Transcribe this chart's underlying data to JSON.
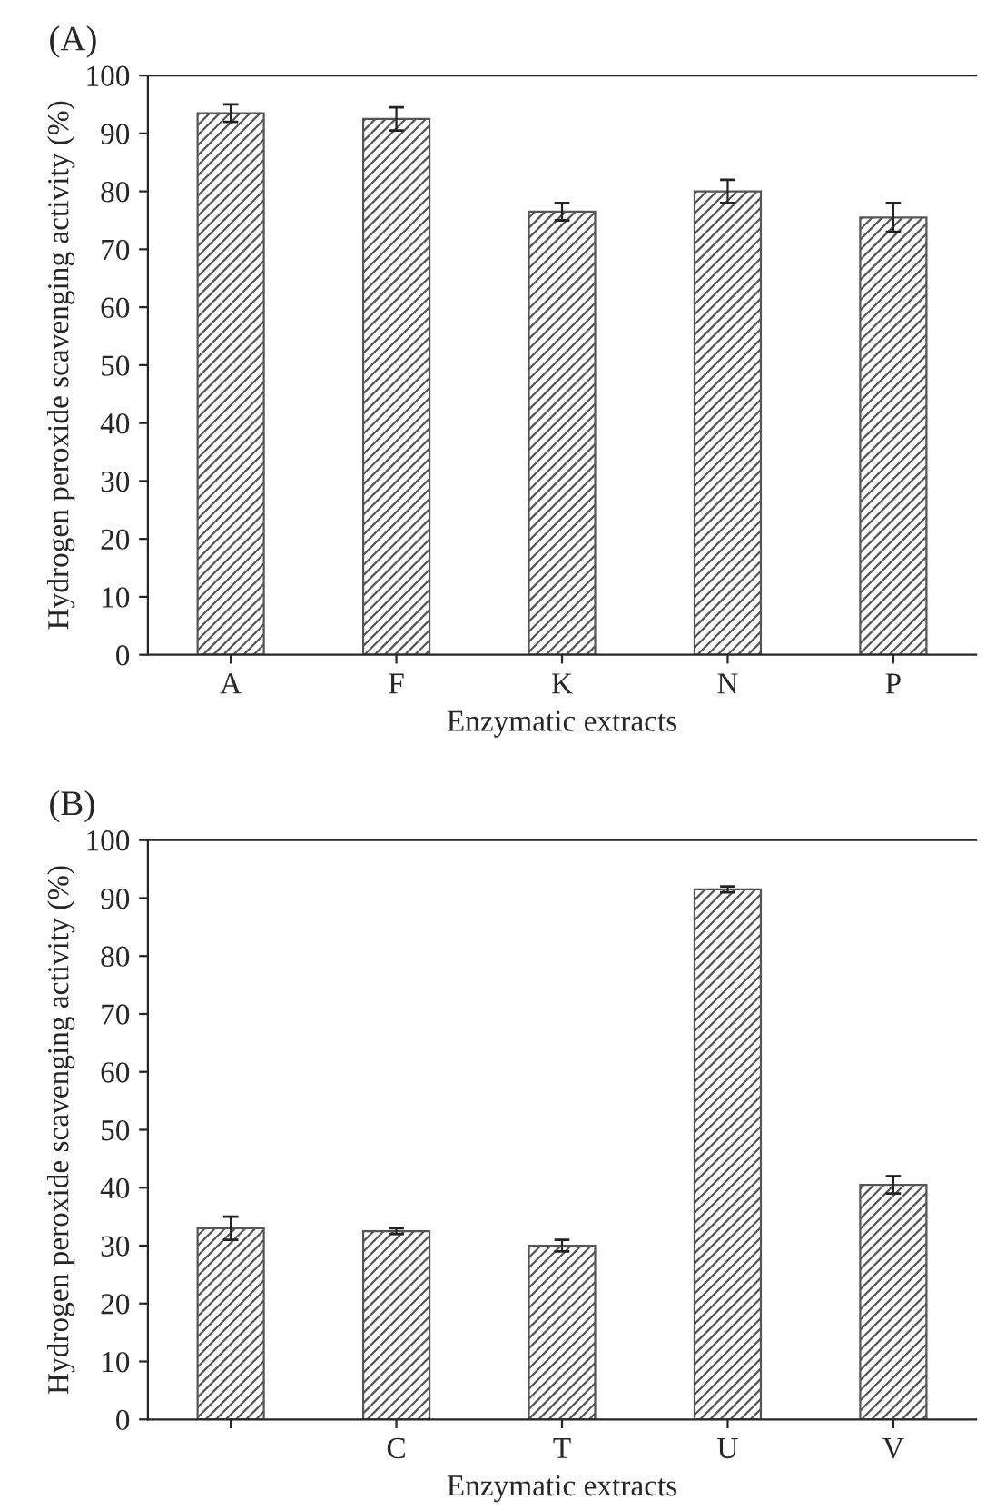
{
  "chart_data": [
    {
      "type": "bar",
      "title": "(A)",
      "xlabel": "Enzymatic extracts",
      "ylabel": "Hydrogen peroxide scavenging activity (%)",
      "categories": [
        "A",
        "F",
        "K",
        "N",
        "P"
      ],
      "values": [
        93.5,
        92.5,
        76.5,
        80,
        75.5
      ],
      "errors": [
        1.5,
        2,
        1.5,
        2,
        2.5
      ],
      "color": "#555555",
      "ylim": [
        0,
        100
      ],
      "yticks": [
        0,
        10,
        20,
        30,
        40,
        50,
        60,
        70,
        80,
        90,
        100
      ],
      "grid": false
    },
    {
      "type": "bar",
      "title": "(B)",
      "xlabel": "Enzymatic extracts",
      "ylabel": "Hydrogen peroxide scavenging activity (%)",
      "categories": [
        null,
        "C",
        "T",
        "U",
        "V"
      ],
      "values": [
        33,
        32.5,
        30,
        91.5,
        40.5
      ],
      "errors": [
        2,
        0.5,
        1,
        0.5,
        1.5
      ],
      "color": "#555555",
      "ylim": [
        0,
        100
      ],
      "yticks": [
        0,
        10,
        20,
        30,
        40,
        50,
        60,
        70,
        80,
        90,
        100
      ],
      "grid": false
    }
  ]
}
